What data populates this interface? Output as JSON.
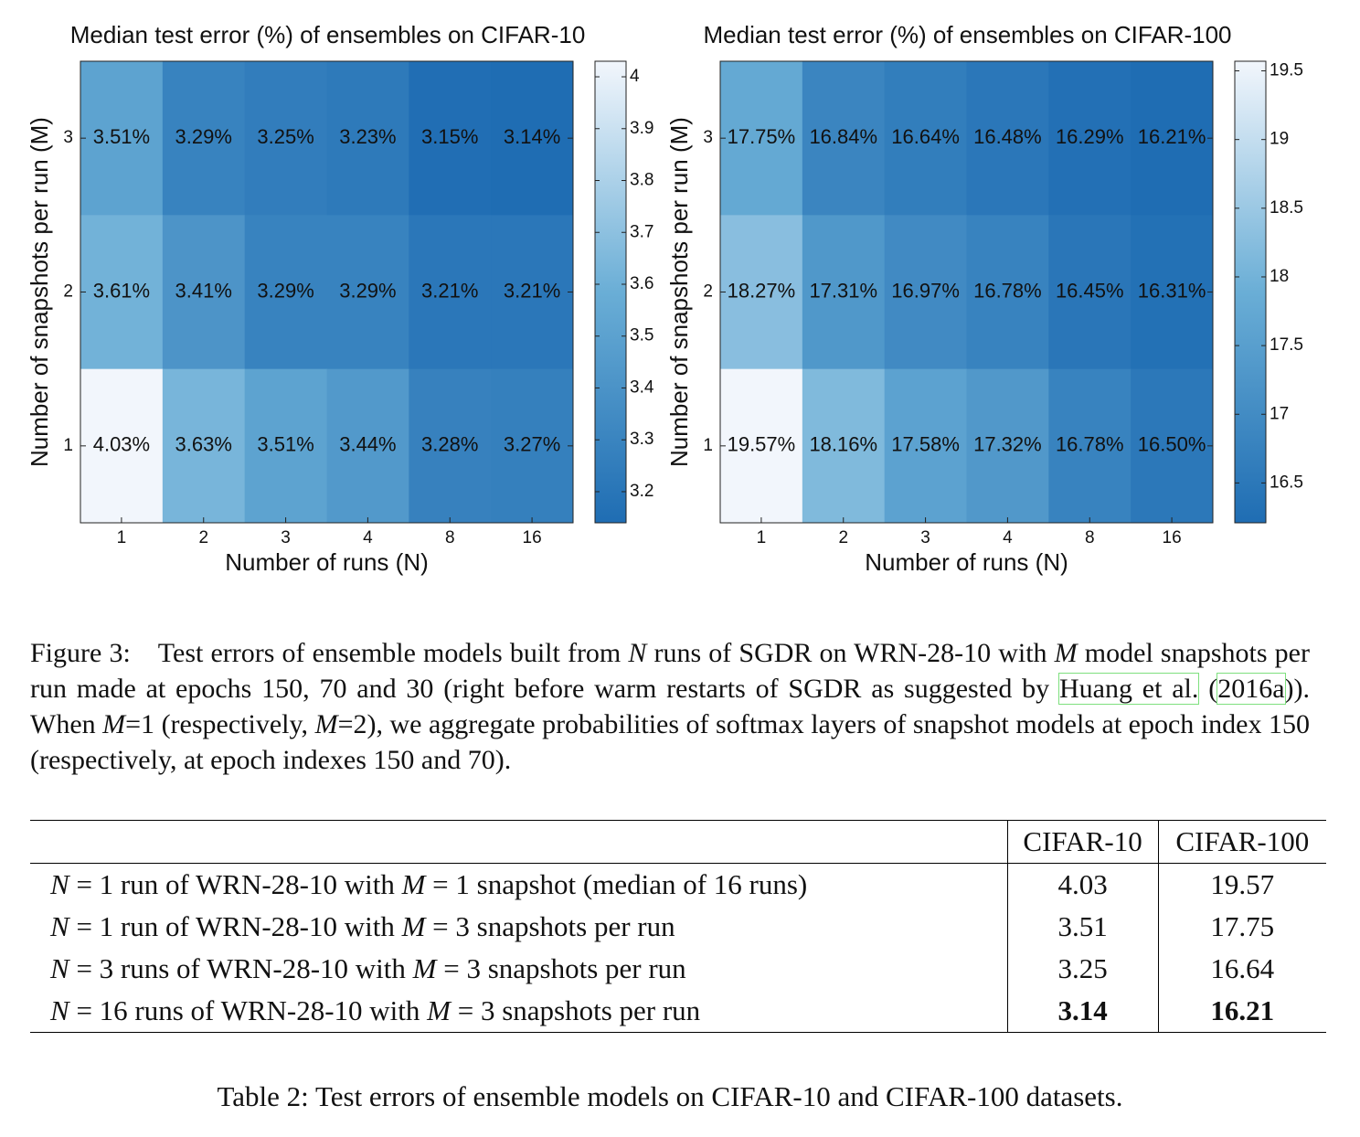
{
  "chart_data": [
    {
      "type": "heatmap",
      "title": "Median test error (%) of ensembles on CIFAR-10",
      "xlabel": "Number of runs (N)",
      "ylabel": "Number of snapshots per run (M)",
      "categories": [
        "1",
        "2",
        "3",
        "4",
        "8",
        "16"
      ],
      "y_categories": [
        "3",
        "2",
        "1"
      ],
      "values": [
        [
          3.51,
          3.29,
          3.25,
          3.23,
          3.15,
          3.14
        ],
        [
          3.61,
          3.41,
          3.29,
          3.29,
          3.21,
          3.21
        ],
        [
          4.03,
          3.63,
          3.51,
          3.44,
          3.28,
          3.27
        ]
      ],
      "value_labels": [
        [
          "3.51%",
          "3.29%",
          "3.25%",
          "3.23%",
          "3.15%",
          "3.14%"
        ],
        [
          "3.61%",
          "3.41%",
          "3.29%",
          "3.29%",
          "3.21%",
          "3.21%"
        ],
        [
          "4.03%",
          "3.63%",
          "3.51%",
          "3.44%",
          "3.28%",
          "3.27%"
        ]
      ],
      "clim": [
        3.14,
        4.03
      ],
      "cticks": [
        3.2,
        3.3,
        3.4,
        3.5,
        3.6,
        3.7,
        3.8,
        3.9,
        4
      ],
      "colormap": [
        "#1f6db3",
        "#6aaed6",
        "#f2f6fc"
      ]
    },
    {
      "type": "heatmap",
      "title": "Median test error (%) of ensembles on CIFAR-100",
      "xlabel": "Number of runs (N)",
      "ylabel": "Number of snapshots per run (M)",
      "categories": [
        "1",
        "2",
        "3",
        "4",
        "8",
        "16"
      ],
      "y_categories": [
        "3",
        "2",
        "1"
      ],
      "values": [
        [
          17.75,
          16.84,
          16.64,
          16.48,
          16.29,
          16.21
        ],
        [
          18.27,
          17.31,
          16.97,
          16.78,
          16.45,
          16.31
        ],
        [
          19.57,
          18.16,
          17.58,
          17.32,
          16.78,
          16.5
        ]
      ],
      "value_labels": [
        [
          "17.75%",
          "16.84%",
          "16.64%",
          "16.48%",
          "16.29%",
          "16.21%"
        ],
        [
          "18.27%",
          "17.31%",
          "16.97%",
          "16.78%",
          "16.45%",
          "16.31%"
        ],
        [
          "19.57%",
          "18.16%",
          "17.58%",
          "17.32%",
          "16.78%",
          "16.50%"
        ]
      ],
      "clim": [
        16.21,
        19.57
      ],
      "cticks": [
        16.5,
        17,
        17.5,
        18,
        18.5,
        19,
        19.5
      ],
      "colormap": [
        "#1f6db3",
        "#6aaed6",
        "#f2f6fc"
      ]
    }
  ],
  "caption": {
    "label": "Figure 3:",
    "parts": [
      "Test errors of ensemble models built from ",
      "N",
      " runs of SGDR on WRN-28-10 with ",
      "M",
      " model snapshots per run made at epochs 150, 70 and 30 (right before warm restarts of SGDR as suggested by ",
      "Huang et al.",
      " (",
      "2016a",
      ")). When ",
      "M",
      "=1 (respectively, ",
      "M",
      "=2), we aggregate probabilities of softmax layers of snapshot models at epoch index 150 (respectively, at epoch indexes 150 and 70)."
    ]
  },
  "table": {
    "columns": [
      "CIFAR-10",
      "CIFAR-100"
    ],
    "rows": [
      {
        "label": [
          "N",
          " = 1 run of WRN-28-10 with ",
          "M",
          " = 1 snapshot (median of 16 runs)"
        ],
        "values": [
          "4.03",
          "19.57"
        ]
      },
      {
        "label": [
          "N",
          " = 1 run of WRN-28-10 with ",
          "M",
          " = 3 snapshots per run"
        ],
        "values": [
          "3.51",
          "17.75"
        ]
      },
      {
        "label": [
          "N",
          " = 3 runs of WRN-28-10 with ",
          "M",
          " = 3 snapshots per run"
        ],
        "values": [
          "3.25",
          "16.64"
        ]
      },
      {
        "label": [
          "N",
          " = 16 runs of WRN-28-10 with ",
          "M",
          " = 3 snapshots per run"
        ],
        "values": [
          "3.14",
          "16.21"
        ]
      }
    ],
    "caption": "Table 2: Test errors of ensemble models on CIFAR-10 and CIFAR-100 datasets."
  }
}
